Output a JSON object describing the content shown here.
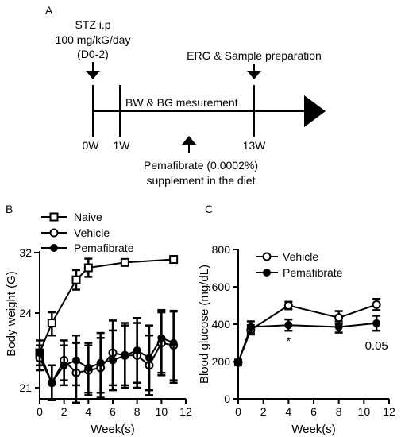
{
  "panels": {
    "a": "A",
    "b": "B",
    "c": "C"
  },
  "timeline": {
    "treatment_line1": "STZ i.p",
    "treatment_line2": "100 mg/kG/day",
    "treatment_line3": "(D0-2)",
    "erg_label": "ERG & Sample preparation",
    "measurement_label": "BW & BG mesurement",
    "time_labels": [
      "0W",
      "1W",
      "13W"
    ],
    "supplement_line1": "Pemafibrate (0.0002%)",
    "supplement_line2": "supplement in the diet"
  },
  "chart_data": [
    {
      "type": "line",
      "ylabel": "Body weight (G)",
      "xlabel": "Week(s)",
      "xlim": [
        0,
        12
      ],
      "ylim": [
        21,
        32
      ],
      "xticks": [
        0,
        2,
        4,
        6,
        8,
        10,
        12
      ],
      "yticks": [
        21,
        24,
        32
      ],
      "y_axis_break": "yes",
      "legend_position": "top-left",
      "series": [
        {
          "name": "Naive",
          "marker": "open-square",
          "x": [
            0,
            1,
            3,
            4,
            7,
            11
          ],
          "y": [
            22.4,
            23.6,
            28.4,
            30.0,
            30.7,
            31.1
          ],
          "err": [
            0.3,
            0.5,
            1.3,
            1.2,
            0.4,
            0.4
          ]
        },
        {
          "name": "Vehicle",
          "marker": "open-circle",
          "x": [
            0,
            1,
            2,
            3,
            4,
            5,
            6,
            7,
            8,
            9,
            10,
            11
          ],
          "y": [
            22.2,
            21.2,
            22.1,
            21.6,
            21.7,
            21.8,
            22.4,
            22.3,
            22.3,
            21.9,
            22.8,
            22.7
          ],
          "err": [
            0.5,
            0.7,
            0.8,
            1.2,
            1.0,
            1.2,
            1.3,
            1.2,
            1.3,
            1.2,
            1.3,
            1.5
          ]
        },
        {
          "name": "Pemafibrate",
          "marker": "filled-circle",
          "x": [
            0,
            1,
            2,
            3,
            4,
            5,
            6,
            7,
            8,
            9,
            10,
            11
          ],
          "y": [
            22.4,
            21.2,
            21.9,
            22.1,
            21.8,
            22.0,
            22.1,
            22.3,
            22.5,
            22.2,
            23.0,
            22.8
          ],
          "err": [
            0.5,
            0.7,
            0.8,
            1.0,
            1.0,
            1.2,
            1.2,
            1.3,
            1.3,
            1.3,
            1.4,
            1.5
          ]
        }
      ]
    },
    {
      "type": "line",
      "ylabel": "Blood glucose  (mg/dL)",
      "xlabel": "Week(s)",
      "xlim": [
        0,
        12
      ],
      "ylim": [
        0,
        800
      ],
      "xticks": [
        0,
        2,
        4,
        6,
        8,
        10,
        12
      ],
      "yticks": [
        0,
        200,
        400,
        600,
        800
      ],
      "legend_position": "top-left",
      "series": [
        {
          "name": "Vehicle",
          "marker": "open-circle",
          "x": [
            0,
            1,
            4,
            8,
            11
          ],
          "y": [
            195,
            370,
            500,
            435,
            505
          ],
          "err": [
            15,
            25,
            20,
            35,
            30
          ]
        },
        {
          "name": "Pemafibrate",
          "marker": "filled-circle",
          "x": [
            0,
            1,
            4,
            8,
            11
          ],
          "y": [
            195,
            385,
            395,
            385,
            405
          ],
          "err": [
            15,
            30,
            30,
            30,
            40
          ]
        }
      ],
      "annotations": [
        {
          "text": "*",
          "x": 4
        },
        {
          "text": "0.05",
          "x": 11
        }
      ]
    }
  ]
}
